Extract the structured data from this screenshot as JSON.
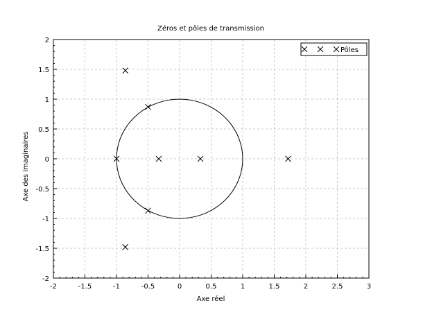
{
  "chart_data": {
    "type": "scatter",
    "title": "Zéros et pôles de transmission",
    "xlabel": "Axe réel",
    "ylabel": "Axe des imaginaires",
    "xlim": [
      -2,
      3
    ],
    "ylim": [
      -2,
      2
    ],
    "xticks": [
      "-2",
      "-1.5",
      "-1",
      "-0.5",
      "0",
      "0.5",
      "1",
      "1.5",
      "2",
      "2.5",
      "3"
    ],
    "yticks": [
      "-2",
      "-1.5",
      "-1",
      "-0.5",
      "0",
      "0.5",
      "1",
      "1.5",
      "2"
    ],
    "grid": true,
    "legend_position": "top-right",
    "unit_circle": true,
    "series": [
      {
        "name": "Pôles",
        "marker": "x",
        "points": [
          {
            "x": -0.86,
            "y": 1.48
          },
          {
            "x": -0.5,
            "y": 0.87
          },
          {
            "x": -1.0,
            "y": 0.0
          },
          {
            "x": -0.33,
            "y": 0.0
          },
          {
            "x": 0.33,
            "y": 0.0
          },
          {
            "x": 1.72,
            "y": 0.0
          },
          {
            "x": -0.5,
            "y": -0.87
          },
          {
            "x": -0.86,
            "y": -1.48
          }
        ]
      }
    ],
    "colors": {
      "axis": "#000000",
      "grid": "#c8c8c8",
      "marker": "#000000",
      "circle": "#000000"
    }
  }
}
